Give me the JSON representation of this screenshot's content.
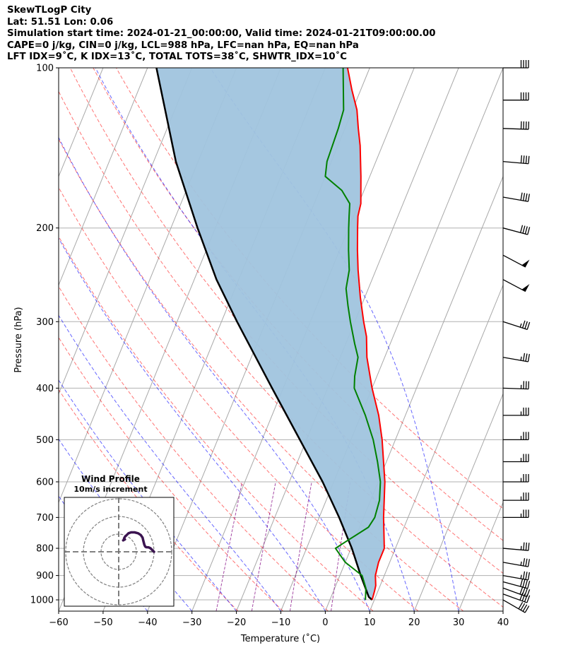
{
  "header": {
    "line1": "SkewTLogP City",
    "line2": "Lat: 51.51   Lon: 0.06",
    "line3": "Simulation start time: 2024-01-21_00:00:00, Valid time: 2024-01-21T09:00:00.00",
    "line4": "CAPE=0 j/kg, CIN=0 j/kg, LCL=988 hPa, LFC=nan hPa, EQ=nan hPa",
    "line5": "LFT IDX=9˚C, K IDX=13˚C, TOTAL TOTS=38˚C, SHWTR_IDX=10˚C"
  },
  "chart_data": {
    "type": "line",
    "xlabel": "Temperature (˚C)",
    "ylabel": "Pressure (hPa)",
    "xlim": [
      -60,
      40
    ],
    "ylim_pressure": [
      1050,
      100
    ],
    "log_pressure_axis": true,
    "skewed_isotherms": true,
    "grid": true,
    "xticks": [
      -60,
      -50,
      -40,
      -30,
      -20,
      -10,
      0,
      10,
      20,
      30,
      40
    ],
    "yticks": [
      1000,
      900,
      800,
      700,
      600,
      500,
      400,
      300,
      200,
      100
    ],
    "temperature_profile": {
      "color": "#ff0000",
      "points": [
        [
          1000,
          9.5
        ],
        [
          960,
          9.2
        ],
        [
          940,
          9.0
        ],
        [
          900,
          8.0
        ],
        [
          850,
          7.5
        ],
        [
          800,
          7.5
        ],
        [
          700,
          4.5
        ],
        [
          600,
          1.5
        ],
        [
          500,
          -3.0
        ],
        [
          450,
          -6.0
        ],
        [
          400,
          -10.0
        ],
        [
          350,
          -14.0
        ],
        [
          320,
          -16.0
        ],
        [
          300,
          -18.0
        ],
        [
          270,
          -21.0
        ],
        [
          240,
          -24.0
        ],
        [
          220,
          -26.0
        ],
        [
          200,
          -28.0
        ],
        [
          190,
          -29.0
        ],
        [
          180,
          -29.5
        ],
        [
          160,
          -32.0
        ],
        [
          140,
          -35.0
        ],
        [
          130,
          -37.0
        ],
        [
          120,
          -39.0
        ],
        [
          110,
          -42.0
        ],
        [
          100,
          -45.0
        ]
      ]
    },
    "dewpoint_profile": {
      "color": "#008000",
      "points": [
        [
          1000,
          8.0
        ],
        [
          950,
          7.0
        ],
        [
          900,
          5.0
        ],
        [
          850,
          0.0
        ],
        [
          800,
          -3.5
        ],
        [
          780,
          -2.0
        ],
        [
          730,
          2.0
        ],
        [
          700,
          2.5
        ],
        [
          650,
          2.0
        ],
        [
          600,
          0.5
        ],
        [
          550,
          -2.0
        ],
        [
          500,
          -5.0
        ],
        [
          450,
          -9.0
        ],
        [
          400,
          -14.0
        ],
        [
          380,
          -15.0
        ],
        [
          350,
          -16.0
        ],
        [
          330,
          -18.0
        ],
        [
          300,
          -21.0
        ],
        [
          280,
          -23.0
        ],
        [
          260,
          -25.0
        ],
        [
          240,
          -26.0
        ],
        [
          220,
          -28.0
        ],
        [
          200,
          -30.0
        ],
        [
          190,
          -31.0
        ],
        [
          180,
          -32.0
        ],
        [
          170,
          -35.0
        ],
        [
          160,
          -40.0
        ],
        [
          150,
          -41.0
        ],
        [
          130,
          -41.5
        ],
        [
          120,
          -42.0
        ],
        [
          100,
          -46.0
        ]
      ]
    },
    "parcel_profile": {
      "color": "#000000",
      "points": [
        [
          1000,
          9.5
        ],
        [
          988,
          8.5
        ],
        [
          900,
          4.7
        ],
        [
          800,
          0.2
        ],
        [
          700,
          -5.5
        ],
        [
          600,
          -12.5
        ],
        [
          500,
          -21.5
        ],
        [
          400,
          -32.5
        ],
        [
          300,
          -46.5
        ],
        [
          250,
          -55.0
        ],
        [
          200,
          -64.0
        ],
        [
          150,
          -75.0
        ],
        [
          100,
          -88.0
        ]
      ]
    },
    "cape_cin_shading": "#a0c4de",
    "dry_adiabats": {
      "color": "#ff0000",
      "style": "dashed",
      "theta_K": [
        250,
        260,
        270,
        280,
        290,
        300,
        310,
        320,
        330,
        340
      ]
    },
    "moist_adiabats": {
      "color": "#0000ff",
      "style": "dashed",
      "surface_temps_C": [
        -40,
        -30,
        -20,
        -10,
        0,
        10,
        20,
        30
      ]
    },
    "mixing_ratio_lines": {
      "color": "#800080",
      "style": "dashed",
      "values_g_kg": [
        0.5,
        1,
        2,
        4
      ]
    },
    "wind_barbs": [
      {
        "pressure": 1000,
        "direction": 300,
        "speed_kt": 40
      },
      {
        "pressure": 975,
        "direction": 290,
        "speed_kt": 40
      },
      {
        "pressure": 950,
        "direction": 290,
        "speed_kt": 40
      },
      {
        "pressure": 925,
        "direction": 285,
        "speed_kt": 40
      },
      {
        "pressure": 900,
        "direction": 280,
        "speed_kt": 35
      },
      {
        "pressure": 850,
        "direction": 280,
        "speed_kt": 35
      },
      {
        "pressure": 800,
        "direction": 275,
        "speed_kt": 35
      },
      {
        "pressure": 700,
        "direction": 270,
        "speed_kt": 35
      },
      {
        "pressure": 650,
        "direction": 270,
        "speed_kt": 35
      },
      {
        "pressure": 600,
        "direction": 270,
        "speed_kt": 35
      },
      {
        "pressure": 550,
        "direction": 270,
        "speed_kt": 35
      },
      {
        "pressure": 500,
        "direction": 270,
        "speed_kt": 35
      },
      {
        "pressure": 450,
        "direction": 270,
        "speed_kt": 35
      },
      {
        "pressure": 400,
        "direction": 272,
        "speed_kt": 35
      },
      {
        "pressure": 350,
        "direction": 280,
        "speed_kt": 35
      },
      {
        "pressure": 300,
        "direction": 288,
        "speed_kt": 35
      },
      {
        "pressure": 250,
        "direction": 298,
        "speed_kt": 50
      },
      {
        "pressure": 225,
        "direction": 298,
        "speed_kt": 50
      },
      {
        "pressure": 200,
        "direction": 285,
        "speed_kt": 40
      },
      {
        "pressure": 175,
        "direction": 280,
        "speed_kt": 40
      },
      {
        "pressure": 150,
        "direction": 275,
        "speed_kt": 40
      },
      {
        "pressure": 130,
        "direction": 272,
        "speed_kt": 40
      },
      {
        "pressure": 115,
        "direction": 270,
        "speed_kt": 40
      },
      {
        "pressure": 100,
        "direction": 270,
        "speed_kt": 40
      }
    ],
    "hodograph": {
      "title_line1": "Wind Profile",
      "title_line2": "10m/s increment",
      "ring_increment_ms": 10,
      "line_color": "#3b1450",
      "points": [
        [
          20,
          0
        ],
        [
          19,
          1
        ],
        [
          18,
          2
        ],
        [
          17,
          2.5
        ],
        [
          15.5,
          2.6
        ],
        [
          15,
          3
        ],
        [
          14.5,
          4
        ],
        [
          14,
          6
        ],
        [
          13.5,
          8
        ],
        [
          12.5,
          9.5
        ],
        [
          11,
          10.5
        ],
        [
          9,
          11
        ],
        [
          7,
          11
        ],
        [
          5.5,
          10.5
        ],
        [
          4.5,
          9.5
        ],
        [
          3.5,
          8.5
        ],
        [
          3,
          7.5
        ],
        [
          3.5,
          7.0
        ],
        [
          2.5,
          6.5
        ]
      ]
    }
  }
}
